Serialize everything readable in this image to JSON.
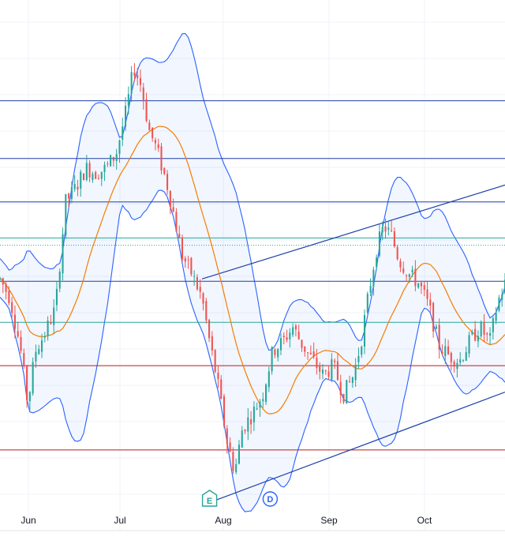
{
  "chart_data": {
    "type": "candlestick",
    "x_ticks": [
      "Jun",
      "Jul",
      "Aug",
      "Sep",
      "Oct"
    ],
    "colors": {
      "up": "#26a69a",
      "down": "#ef5350",
      "sma": "#f57c00",
      "bands": "#2962ff",
      "band_fill": "#2962ff",
      "level_blue": "#1e3fa8",
      "level_teal": "#26a69a",
      "level_red": "#b71c1c",
      "grid": "#f0f3fa",
      "axis_text": "#131722"
    },
    "indicators": [
      "bollinger-bands",
      "moving-average"
    ],
    "horizontal_levels": [
      {
        "kind": "resistance",
        "color": "level_blue",
        "value": 0.84
      },
      {
        "kind": "resistance",
        "color": "level_blue",
        "value": 0.72
      },
      {
        "kind": "resistance",
        "color": "level_blue",
        "value": 0.63
      },
      {
        "kind": "support",
        "color": "level_teal",
        "value": 0.555
      },
      {
        "kind": "support",
        "color": "level_teal",
        "value": 0.54,
        "style": "dotted"
      },
      {
        "kind": "support",
        "color": "level_blue",
        "value": 0.465
      },
      {
        "kind": "support",
        "color": "level_teal",
        "value": 0.38
      },
      {
        "kind": "support",
        "color": "level_red",
        "value": 0.29
      },
      {
        "kind": "support",
        "color": "level_red",
        "value": 0.115
      }
    ],
    "trend_channel": {
      "upper": [
        [
          0.4,
          0.47
        ],
        [
          1.0,
          0.665
        ]
      ],
      "lower": [
        [
          0.4,
          0.0
        ],
        [
          1.0,
          0.235
        ]
      ]
    },
    "event_markers": [
      {
        "label": "E",
        "type": "earnings",
        "x": 0.415
      },
      {
        "label": "D",
        "type": "dividend",
        "x": 0.535
      }
    ],
    "price_path": [
      [
        0.0,
        0.47
      ],
      [
        0.02,
        0.43
      ],
      [
        0.04,
        0.33
      ],
      [
        0.055,
        0.21
      ],
      [
        0.07,
        0.32
      ],
      [
        0.09,
        0.36
      ],
      [
        0.11,
        0.41
      ],
      [
        0.13,
        0.63
      ],
      [
        0.15,
        0.66
      ],
      [
        0.17,
        0.7
      ],
      [
        0.19,
        0.69
      ],
      [
        0.21,
        0.7
      ],
      [
        0.23,
        0.73
      ],
      [
        0.25,
        0.82
      ],
      [
        0.265,
        0.91
      ],
      [
        0.28,
        0.87
      ],
      [
        0.295,
        0.78
      ],
      [
        0.31,
        0.74
      ],
      [
        0.33,
        0.67
      ],
      [
        0.345,
        0.6
      ],
      [
        0.36,
        0.52
      ],
      [
        0.38,
        0.48
      ],
      [
        0.4,
        0.43
      ],
      [
        0.415,
        0.34
      ],
      [
        0.43,
        0.26
      ],
      [
        0.45,
        0.13
      ],
      [
        0.465,
        0.07
      ],
      [
        0.48,
        0.16
      ],
      [
        0.5,
        0.19
      ],
      [
        0.52,
        0.23
      ],
      [
        0.54,
        0.32
      ],
      [
        0.56,
        0.34
      ],
      [
        0.58,
        0.37
      ],
      [
        0.6,
        0.33
      ],
      [
        0.62,
        0.3
      ],
      [
        0.64,
        0.27
      ],
      [
        0.66,
        0.29
      ],
      [
        0.68,
        0.23
      ],
      [
        0.7,
        0.27
      ],
      [
        0.715,
        0.34
      ],
      [
        0.73,
        0.44
      ],
      [
        0.745,
        0.53
      ],
      [
        0.76,
        0.58
      ],
      [
        0.775,
        0.56
      ],
      [
        0.79,
        0.51
      ],
      [
        0.81,
        0.48
      ],
      [
        0.83,
        0.46
      ],
      [
        0.85,
        0.41
      ],
      [
        0.87,
        0.33
      ],
      [
        0.89,
        0.31
      ],
      [
        0.91,
        0.3
      ],
      [
        0.93,
        0.34
      ],
      [
        0.95,
        0.37
      ],
      [
        0.97,
        0.34
      ],
      [
        0.985,
        0.42
      ],
      [
        1.0,
        0.46
      ]
    ],
    "grid": true,
    "legend": "none"
  }
}
